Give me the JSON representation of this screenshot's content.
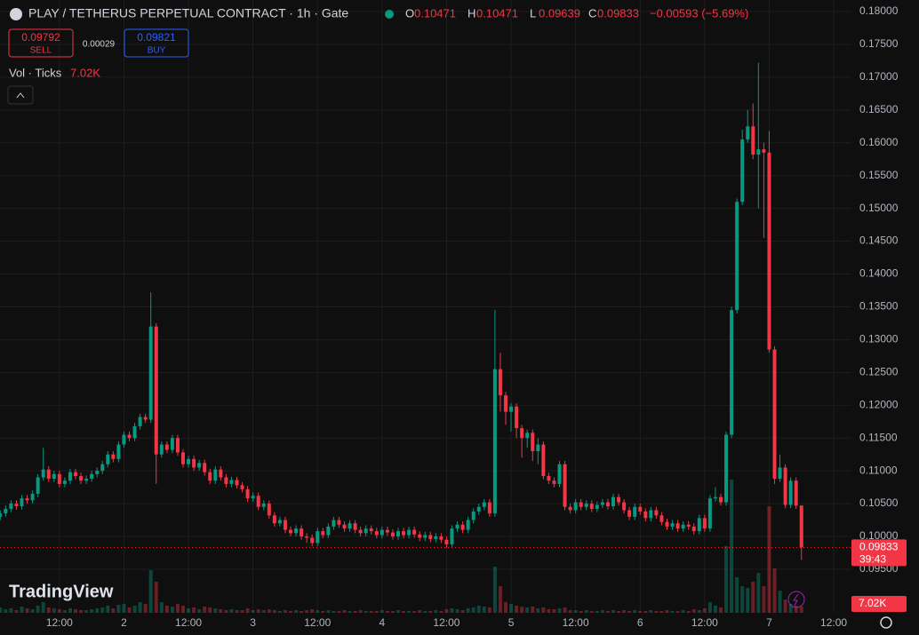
{
  "chart_data": {
    "type": "candlestick",
    "title": "PLAY / TETHERUS PERPETUAL CONTRACT · 1h · Gate",
    "ohlc_keys": [
      "O",
      "H",
      "L",
      "C"
    ],
    "change": "−0.00593 (−5.69%)",
    "sell": 0.09792,
    "sell_label": "SELL",
    "spread": 0.00029,
    "buy": 0.09821,
    "buy_label": "BUY",
    "volume_title": "Vol · Ticks",
    "volume_value_label": "7.02K",
    "countdown": "39:43",
    "logo": "TradingView",
    "up_color": "#089981",
    "down_color": "#f23645",
    "grid": true,
    "xlim": [
      0.95,
      159.3
    ],
    "xticks": [
      {
        "value": 12,
        "label": "12:00"
      },
      {
        "value": 24,
        "label": "2"
      },
      {
        "value": 36,
        "label": "12:00"
      },
      {
        "value": 48,
        "label": "3"
      },
      {
        "value": 60,
        "label": "12:00"
      },
      {
        "value": 72,
        "label": "4"
      },
      {
        "value": 84,
        "label": "12:00"
      },
      {
        "value": 96,
        "label": "5"
      },
      {
        "value": 108,
        "label": "12:00"
      },
      {
        "value": 120,
        "label": "6"
      },
      {
        "value": 132,
        "label": "12:00"
      },
      {
        "value": 144,
        "label": "7"
      },
      {
        "value": 156,
        "label": "12:00"
      }
    ],
    "ylim": [
      0.08836,
      0.18176
    ],
    "yticks": [
      {
        "value": 0.18,
        "label": "0.18000"
      },
      {
        "value": 0.175,
        "label": "0.17500"
      },
      {
        "value": 0.17,
        "label": "0.17000"
      },
      {
        "value": 0.165,
        "label": "0.16500"
      },
      {
        "value": 0.16,
        "label": "0.16000"
      },
      {
        "value": 0.155,
        "label": "0.15500"
      },
      {
        "value": 0.15,
        "label": "0.15000"
      },
      {
        "value": 0.145,
        "label": "0.14500"
      },
      {
        "value": 0.14,
        "label": "0.14000"
      },
      {
        "value": 0.135,
        "label": "0.13500"
      },
      {
        "value": 0.13,
        "label": "0.13000"
      },
      {
        "value": 0.125,
        "label": "0.12500"
      },
      {
        "value": 0.12,
        "label": "0.12000"
      },
      {
        "value": 0.115,
        "label": "0.11500"
      },
      {
        "value": 0.11,
        "label": "0.11000"
      },
      {
        "value": 0.105,
        "label": "0.10500"
      },
      {
        "value": 0.1,
        "label": "0.10000"
      },
      {
        "value": 0.095,
        "label": "0.09500"
      }
    ],
    "volume_lim": [
      0,
      200
    ],
    "x": [
      1,
      2,
      3,
      4,
      5,
      6,
      7,
      8,
      9,
      10,
      11,
      12,
      13,
      14,
      15,
      16,
      17,
      18,
      19,
      20,
      21,
      22,
      23,
      24,
      25,
      26,
      27,
      28,
      29,
      30,
      31,
      32,
      33,
      34,
      35,
      36,
      37,
      38,
      39,
      40,
      41,
      42,
      43,
      44,
      45,
      46,
      47,
      48,
      49,
      50,
      51,
      52,
      53,
      54,
      55,
      56,
      57,
      58,
      59,
      60,
      61,
      62,
      63,
      64,
      65,
      66,
      67,
      68,
      69,
      70,
      71,
      72,
      73,
      74,
      75,
      76,
      77,
      78,
      79,
      80,
      81,
      82,
      83,
      84,
      85,
      86,
      87,
      88,
      89,
      90,
      91,
      92,
      93,
      94,
      95,
      96,
      97,
      98,
      99,
      100,
      101,
      102,
      103,
      104,
      105,
      106,
      107,
      108,
      109,
      110,
      111,
      112,
      113,
      114,
      115,
      116,
      117,
      118,
      119,
      120,
      121,
      122,
      123,
      124,
      125,
      126,
      127,
      128,
      129,
      130,
      131,
      132,
      133,
      134,
      135,
      136,
      137,
      138,
      139,
      140,
      141,
      142,
      143,
      144,
      145,
      146,
      147,
      148,
      149,
      150
    ],
    "ohlc": [
      [
        0.103,
        0.104,
        0.1025,
        0.1035
      ],
      [
        0.1035,
        0.1047,
        0.103,
        0.1042
      ],
      [
        0.1042,
        0.1055,
        0.1037,
        0.105
      ],
      [
        0.105,
        0.1055,
        0.1041,
        0.1046
      ],
      [
        0.1046,
        0.1063,
        0.1041,
        0.1058
      ],
      [
        0.1058,
        0.1063,
        0.105,
        0.1055
      ],
      [
        0.1055,
        0.107,
        0.105,
        0.1065
      ],
      [
        0.1065,
        0.1095,
        0.106,
        0.109
      ],
      [
        0.109,
        0.1135,
        0.1085,
        0.1102
      ],
      [
        0.1102,
        0.1107,
        0.1083,
        0.1088
      ],
      [
        0.1088,
        0.11,
        0.1083,
        0.1095
      ],
      [
        0.1095,
        0.11,
        0.1075,
        0.108
      ],
      [
        0.108,
        0.109,
        0.1075,
        0.1085
      ],
      [
        0.1085,
        0.1103,
        0.108,
        0.1098
      ],
      [
        0.1098,
        0.1103,
        0.1087,
        0.1092
      ],
      [
        0.1092,
        0.1097,
        0.108,
        0.1085
      ],
      [
        0.1085,
        0.1093,
        0.108,
        0.1088
      ],
      [
        0.1088,
        0.11,
        0.1083,
        0.1095
      ],
      [
        0.1095,
        0.1105,
        0.109,
        0.11
      ],
      [
        0.11,
        0.1115,
        0.1095,
        0.111
      ],
      [
        0.111,
        0.113,
        0.1105,
        0.1125
      ],
      [
        0.1125,
        0.113,
        0.1113,
        0.1118
      ],
      [
        0.1118,
        0.1145,
        0.1113,
        0.114
      ],
      [
        0.114,
        0.116,
        0.1135,
        0.1155
      ],
      [
        0.1155,
        0.116,
        0.1145,
        0.115
      ],
      [
        0.115,
        0.1173,
        0.1145,
        0.1168
      ],
      [
        0.1168,
        0.1187,
        0.1163,
        0.1182
      ],
      [
        0.1182,
        0.1187,
        0.1173,
        0.1178
      ],
      [
        0.1178,
        0.1372,
        0.1173,
        0.132
      ],
      [
        0.132,
        0.1325,
        0.108,
        0.1125
      ],
      [
        0.1125,
        0.1145,
        0.112,
        0.114
      ],
      [
        0.114,
        0.1145,
        0.1127,
        0.1132
      ],
      [
        0.1132,
        0.1155,
        0.1127,
        0.115
      ],
      [
        0.115,
        0.1155,
        0.1123,
        0.1128
      ],
      [
        0.1128,
        0.1133,
        0.1105,
        0.111
      ],
      [
        0.111,
        0.1123,
        0.1105,
        0.1118
      ],
      [
        0.1118,
        0.1123,
        0.11,
        0.1105
      ],
      [
        0.1105,
        0.1117,
        0.11,
        0.1112
      ],
      [
        0.1112,
        0.1117,
        0.1093,
        0.1098
      ],
      [
        0.1098,
        0.1103,
        0.108,
        0.1085
      ],
      [
        0.1085,
        0.1107,
        0.108,
        0.1102
      ],
      [
        0.1102,
        0.1107,
        0.1085,
        0.109
      ],
      [
        0.109,
        0.1095,
        0.1075,
        0.108
      ],
      [
        0.108,
        0.1091,
        0.1075,
        0.1086
      ],
      [
        0.1086,
        0.1091,
        0.1073,
        0.1078
      ],
      [
        0.1078,
        0.1083,
        0.1067,
        0.1072
      ],
      [
        0.1072,
        0.1077,
        0.1053,
        0.1058
      ],
      [
        0.1058,
        0.1067,
        0.1053,
        0.1062
      ],
      [
        0.1062,
        0.1067,
        0.104,
        0.1045
      ],
      [
        0.1045,
        0.1055,
        0.104,
        0.105
      ],
      [
        0.105,
        0.1055,
        0.1027,
        0.1032
      ],
      [
        0.1032,
        0.1037,
        0.1015,
        0.102
      ],
      [
        0.102,
        0.103,
        0.1015,
        0.1025
      ],
      [
        0.1025,
        0.103,
        0.1005,
        0.101
      ],
      [
        0.101,
        0.1015,
        0.1,
        0.1005
      ],
      [
        0.1005,
        0.1017,
        0.1,
        0.1012
      ],
      [
        0.1012,
        0.1017,
        0.0995,
        0.1
      ],
      [
        0.1,
        0.1005,
        0.099,
        0.0998
      ],
      [
        0.0998,
        0.1003,
        0.0985,
        0.099
      ],
      [
        0.099,
        0.1013,
        0.0985,
        0.1008
      ],
      [
        0.1008,
        0.1013,
        0.0997,
        0.1002
      ],
      [
        0.1002,
        0.102,
        0.0997,
        0.1015
      ],
      [
        0.1015,
        0.103,
        0.101,
        0.1025
      ],
      [
        0.1025,
        0.103,
        0.1013,
        0.1018
      ],
      [
        0.1018,
        0.1023,
        0.1007,
        0.1012
      ],
      [
        0.1012,
        0.1025,
        0.1007,
        0.102
      ],
      [
        0.102,
        0.1025,
        0.1005,
        0.101
      ],
      [
        0.101,
        0.1015,
        0.1,
        0.1005
      ],
      [
        0.1005,
        0.1017,
        0.1,
        0.1012
      ],
      [
        0.1012,
        0.1017,
        0.1003,
        0.1008
      ],
      [
        0.1008,
        0.1013,
        0.0997,
        0.1002
      ],
      [
        0.1002,
        0.1015,
        0.0997,
        0.101
      ],
      [
        0.101,
        0.1015,
        0.1001,
        0.1006
      ],
      [
        0.1006,
        0.1011,
        0.0995,
        0.1
      ],
      [
        0.1,
        0.1013,
        0.0995,
        0.1008
      ],
      [
        0.1008,
        0.1013,
        0.0997,
        0.1002
      ],
      [
        0.1002,
        0.1015,
        0.0997,
        0.101
      ],
      [
        0.101,
        0.1015,
        0.0998,
        0.1003
      ],
      [
        0.1003,
        0.1008,
        0.0993,
        0.0998
      ],
      [
        0.0998,
        0.1007,
        0.0993,
        0.1002
      ],
      [
        0.1002,
        0.1007,
        0.0991,
        0.0996
      ],
      [
        0.0996,
        0.1005,
        0.0991,
        0.1
      ],
      [
        0.1,
        0.1005,
        0.099,
        0.0995
      ],
      [
        0.0995,
        0.1,
        0.0983,
        0.0988
      ],
      [
        0.0988,
        0.1017,
        0.0983,
        0.1012
      ],
      [
        0.1012,
        0.1023,
        0.1007,
        0.1018
      ],
      [
        0.1018,
        0.1023,
        0.1005,
        0.101
      ],
      [
        0.101,
        0.103,
        0.1005,
        0.1025
      ],
      [
        0.1025,
        0.1043,
        0.102,
        0.1038
      ],
      [
        0.1038,
        0.105,
        0.1033,
        0.1045
      ],
      [
        0.1045,
        0.1057,
        0.104,
        0.1052
      ],
      [
        0.1052,
        0.1057,
        0.103,
        0.1035
      ],
      [
        0.1035,
        0.1345,
        0.103,
        0.1255
      ],
      [
        0.1255,
        0.128,
        0.119,
        0.1215
      ],
      [
        0.1215,
        0.122,
        0.117,
        0.119
      ],
      [
        0.119,
        0.1203,
        0.116,
        0.1198
      ],
      [
        0.1198,
        0.1203,
        0.115,
        0.1165
      ],
      [
        0.1165,
        0.117,
        0.112,
        0.115
      ],
      [
        0.115,
        0.1163,
        0.1135,
        0.1158
      ],
      [
        0.1158,
        0.1163,
        0.1115,
        0.113
      ],
      [
        0.113,
        0.115,
        0.111,
        0.114
      ],
      [
        0.114,
        0.1145,
        0.1087,
        0.1092
      ],
      [
        0.1092,
        0.1097,
        0.108,
        0.1085
      ],
      [
        0.1085,
        0.109,
        0.1075,
        0.108
      ],
      [
        0.108,
        0.1115,
        0.1075,
        0.111
      ],
      [
        0.111,
        0.1115,
        0.104,
        0.1045
      ],
      [
        0.1045,
        0.105,
        0.1035,
        0.104
      ],
      [
        0.104,
        0.1057,
        0.1035,
        0.1052
      ],
      [
        0.1052,
        0.1057,
        0.104,
        0.1045
      ],
      [
        0.1045,
        0.1055,
        0.104,
        0.105
      ],
      [
        0.105,
        0.1055,
        0.1037,
        0.1042
      ],
      [
        0.1042,
        0.1053,
        0.1037,
        0.1048
      ],
      [
        0.1048,
        0.1057,
        0.1043,
        0.1052
      ],
      [
        0.1052,
        0.1057,
        0.1041,
        0.1046
      ],
      [
        0.1046,
        0.1065,
        0.1041,
        0.106
      ],
      [
        0.106,
        0.1065,
        0.1047,
        0.1052
      ],
      [
        0.1052,
        0.1057,
        0.1035,
        0.104
      ],
      [
        0.104,
        0.1045,
        0.1025,
        0.103
      ],
      [
        0.103,
        0.105,
        0.1025,
        0.1045
      ],
      [
        0.1045,
        0.105,
        0.1033,
        0.1038
      ],
      [
        0.1038,
        0.1043,
        0.1023,
        0.1028
      ],
      [
        0.1028,
        0.1045,
        0.1023,
        0.104
      ],
      [
        0.104,
        0.1045,
        0.1027,
        0.1032
      ],
      [
        0.1032,
        0.1037,
        0.1017,
        0.1022
      ],
      [
        0.1022,
        0.1027,
        0.101,
        0.1015
      ],
      [
        0.1015,
        0.1025,
        0.101,
        0.102
      ],
      [
        0.102,
        0.1025,
        0.1007,
        0.1012
      ],
      [
        0.1012,
        0.1023,
        0.1007,
        0.1018
      ],
      [
        0.1018,
        0.1023,
        0.101,
        0.1015
      ],
      [
        0.1015,
        0.102,
        0.1003,
        0.1008
      ],
      [
        0.1008,
        0.1033,
        0.1003,
        0.1028
      ],
      [
        0.1028,
        0.1033,
        0.1007,
        0.1012
      ],
      [
        0.1012,
        0.1063,
        0.1007,
        0.1058
      ],
      [
        0.1058,
        0.1075,
        0.1053,
        0.106
      ],
      [
        0.106,
        0.1065,
        0.1047,
        0.1052
      ],
      [
        0.1052,
        0.116,
        0.1047,
        0.1155
      ],
      [
        0.1155,
        0.135,
        0.115,
        0.1345
      ],
      [
        0.1345,
        0.1515,
        0.134,
        0.151
      ],
      [
        0.151,
        0.162,
        0.1505,
        0.1605
      ],
      [
        0.1605,
        0.165,
        0.16,
        0.1625
      ],
      [
        0.1625,
        0.166,
        0.1575,
        0.1582
      ],
      [
        0.1582,
        0.1722,
        0.15,
        0.159
      ],
      [
        0.159,
        0.16,
        0.1455,
        0.1585
      ],
      [
        0.1585,
        0.1618,
        0.128,
        0.1285
      ],
      [
        0.1285,
        0.129,
        0.108,
        0.1088
      ],
      [
        0.1088,
        0.1125,
        0.1083,
        0.1105
      ],
      [
        0.1105,
        0.111,
        0.1043,
        0.1048
      ],
      [
        0.1048,
        0.109,
        0.1043,
        0.1085
      ],
      [
        0.1085,
        0.109,
        0.1042,
        0.1047
      ],
      [
        0.10471,
        0.10471,
        0.09639,
        0.09833
      ]
    ],
    "volume": [
      6,
      4,
      5,
      3,
      7,
      5,
      4,
      8,
      12,
      6,
      5,
      4,
      3,
      5,
      4,
      3,
      3,
      4,
      5,
      6,
      8,
      5,
      9,
      10,
      6,
      8,
      12,
      10,
      48,
      35,
      12,
      8,
      7,
      10,
      8,
      5,
      6,
      4,
      7,
      6,
      5,
      4,
      3,
      4,
      3,
      3,
      5,
      3,
      4,
      3,
      4,
      3,
      2,
      3,
      2,
      3,
      2,
      3,
      4,
      3,
      2,
      3,
      2,
      2,
      3,
      2,
      2,
      3,
      2,
      2,
      2,
      3,
      2,
      2,
      3,
      2,
      2,
      2,
      3,
      2,
      2,
      3,
      2,
      4,
      5,
      4,
      3,
      5,
      6,
      8,
      7,
      6,
      52,
      30,
      12,
      10,
      8,
      7,
      6,
      7,
      5,
      6,
      4,
      4,
      5,
      6,
      3,
      3,
      2,
      3,
      2,
      2,
      3,
      2,
      3,
      2,
      3,
      2,
      3,
      2,
      2,
      3,
      2,
      2,
      3,
      2,
      2,
      3,
      2,
      4,
      3,
      5,
      12,
      8,
      6,
      75,
      150,
      40,
      30,
      28,
      35,
      45,
      30,
      120,
      50,
      25,
      15,
      10,
      8,
      7.02
    ]
  }
}
